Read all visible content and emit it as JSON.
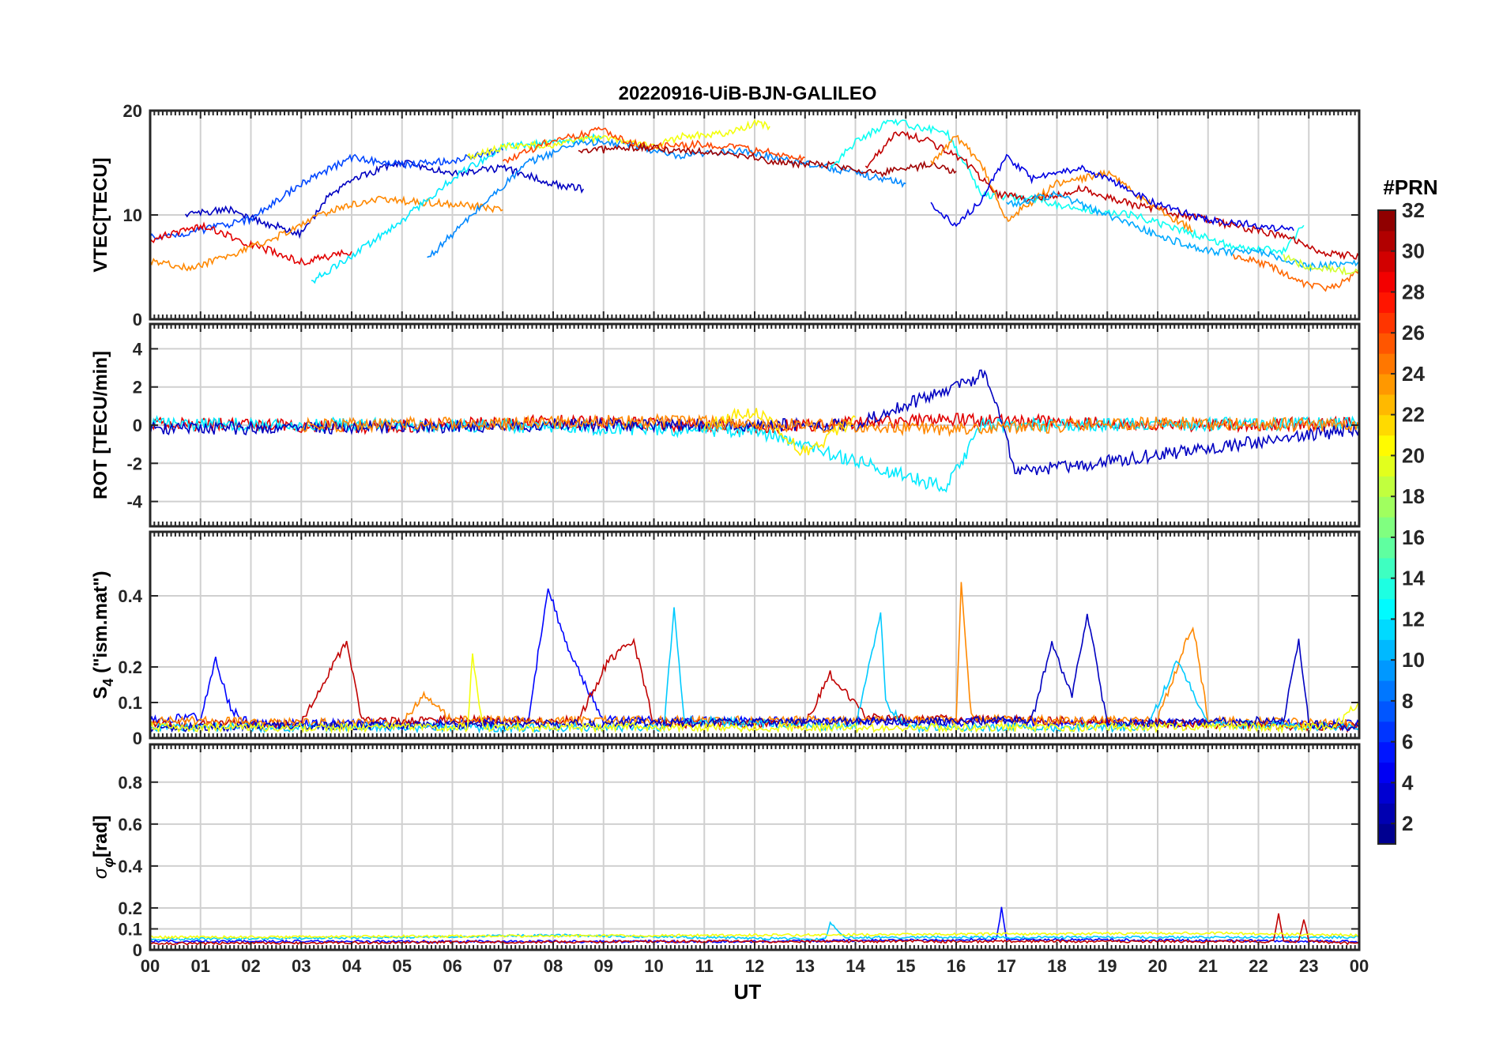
{
  "chart_data": {
    "type": "line",
    "title": "20220916-UiB-BJN-GALILEO",
    "xlabel": "UT",
    "xlim": [
      0,
      24
    ],
    "x_tick_labels": [
      "00",
      "01",
      "02",
      "03",
      "04",
      "05",
      "06",
      "07",
      "08",
      "09",
      "10",
      "11",
      "12",
      "13",
      "14",
      "15",
      "16",
      "17",
      "18",
      "19",
      "20",
      "21",
      "22",
      "23",
      "00"
    ],
    "grid": true,
    "color_by": "satellite PRN",
    "colorbar": {
      "title": "#PRN",
      "range": [
        1,
        32
      ],
      "ticks": [
        "2",
        "4",
        "6",
        "8",
        "10",
        "12",
        "14",
        "16",
        "18",
        "20",
        "22",
        "24",
        "26",
        "28",
        "30",
        "32"
      ],
      "colormap": "jet",
      "placement": "right"
    },
    "panels": [
      {
        "id": "vtec",
        "ylabel": "VTEC[TECU]",
        "ylim": [
          0,
          20
        ],
        "yticks": [
          0,
          10,
          20
        ],
        "ytick_labels": [
          "0",
          "10",
          "20"
        ],
        "series": [
          {
            "prn": 3,
            "x": [
              0.7,
              1.5,
              2.3,
              3.0,
              3.5,
              4.0,
              5.0,
              6.0,
              7.0,
              8.0,
              8.6
            ],
            "y": [
              10.0,
              10.6,
              9.2,
              8.2,
              11.5,
              13.5,
              15.0,
              14.0,
              14.5,
              13.0,
              12.5
            ]
          },
          {
            "prn": 7,
            "x": [
              0.0,
              1.0,
              2.0,
              3.0,
              4.0,
              5.0,
              6.0,
              7.0
            ],
            "y": [
              7.8,
              8.5,
              9.6,
              13.0,
              15.5,
              14.8,
              15.2,
              16.2
            ]
          },
          {
            "prn": 29,
            "x": [
              0.0,
              1.0,
              2.0,
              3.0,
              4.0
            ],
            "y": [
              7.6,
              9.0,
              7.2,
              5.5,
              6.5
            ]
          },
          {
            "prn": 24,
            "x": [
              0.0,
              0.8,
              1.8,
              2.8,
              3.6,
              4.5,
              5.5,
              6.5,
              7.0
            ],
            "y": [
              5.5,
              4.9,
              6.5,
              8.5,
              10.5,
              11.5,
              11.2,
              10.8,
              10.5
            ]
          },
          {
            "prn": 12,
            "x": [
              3.2,
              4.0,
              5.0,
              6.0,
              7.0,
              8.0,
              9.0
            ],
            "y": [
              3.6,
              6.0,
              9.5,
              13.5,
              16.5,
              17.0,
              17.5
            ]
          },
          {
            "prn": 9,
            "x": [
              5.5,
              6.5,
              7.5,
              8.5,
              9.5,
              10.5,
              11.5,
              12.5,
              13.5,
              14.5,
              15.0
            ],
            "y": [
              5.8,
              10.5,
              15.0,
              17.0,
              16.8,
              15.5,
              16.2,
              15.5,
              14.5,
              13.5,
              13.0
            ]
          },
          {
            "prn": 20,
            "x": [
              6.3,
              7.0,
              8.0,
              9.0,
              10.0,
              10.5,
              11.5,
              12.0,
              12.3
            ],
            "y": [
              15.5,
              16.5,
              16.8,
              17.5,
              16.5,
              17.5,
              17.8,
              18.8,
              18.5
            ]
          },
          {
            "prn": 26,
            "x": [
              7.0,
              8.0,
              9.0,
              9.5,
              10.0,
              11.0,
              12.0,
              13.0
            ],
            "y": [
              15.0,
              17.2,
              18.2,
              17.0,
              16.5,
              16.8,
              16.2,
              15.5
            ]
          },
          {
            "prn": 31,
            "x": [
              8.5,
              9.5,
              10.5,
              11.5,
              12.5,
              13.5,
              14.5,
              15.5,
              16.0
            ],
            "y": [
              16.0,
              16.5,
              16.2,
              16.0,
              15.0,
              14.8,
              14.0,
              14.8,
              14.2
            ]
          },
          {
            "prn": 13,
            "x": [
              13.5,
              14.0,
              14.7,
              15.2,
              15.8,
              16.5,
              17.5,
              18.5,
              19.5,
              20.5,
              21.5,
              22.5,
              22.9
            ],
            "y": [
              14.5,
              17.0,
              19.0,
              18.5,
              18.0,
              12.0,
              11.5,
              10.5,
              10.0,
              8.5,
              7.0,
              6.5,
              9.0
            ]
          },
          {
            "prn": 30,
            "x": [
              14.2,
              14.8,
              15.5,
              16.2,
              16.8,
              17.5,
              18.5,
              19.5,
              20.5,
              21.5,
              22.5,
              23.2,
              24.0
            ],
            "y": [
              14.5,
              18.0,
              17.0,
              15.0,
              12.0,
              11.5,
              12.5,
              11.0,
              10.0,
              9.0,
              8.0,
              6.5,
              6.0
            ]
          },
          {
            "prn": 24,
            "x": [
              15.5,
              16.0,
              16.5,
              17.0,
              18.0,
              19.0,
              20.0,
              20.7
            ],
            "y": [
              15.0,
              17.5,
              15.0,
              9.5,
              13.0,
              14.0,
              10.5,
              8.5
            ]
          },
          {
            "prn": 4,
            "x": [
              15.5,
              16.0,
              16.5,
              17.0,
              17.5,
              18.5,
              19.2,
              20.0,
              21.0,
              22.0,
              22.7
            ],
            "y": [
              11.0,
              9.0,
              11.5,
              15.5,
              13.5,
              14.5,
              13.0,
              11.0,
              9.5,
              9.0,
              8.5
            ]
          },
          {
            "prn": 10,
            "x": [
              17.0,
              18.0,
              19.0,
              20.0,
              21.0,
              22.0,
              23.0,
              24.0
            ],
            "y": [
              11.0,
              12.0,
              10.0,
              8.0,
              6.5,
              6.5,
              5.0,
              5.5
            ]
          },
          {
            "prn": 25,
            "x": [
              21.5,
              22.0,
              22.5,
              23.0,
              23.5,
              24.0
            ],
            "y": [
              6.0,
              5.5,
              4.5,
              3.2,
              3.0,
              4.5
            ]
          },
          {
            "prn": 19,
            "x": [
              22.5,
              23.0,
              23.5,
              24.0
            ],
            "y": [
              6.0,
              5.0,
              4.8,
              4.5
            ]
          }
        ]
      },
      {
        "id": "rot",
        "ylabel": "ROT [TECU/min]",
        "ylim": [
          -5.3,
          5.3
        ],
        "yticks": [
          -4,
          -2,
          0,
          2,
          4
        ],
        "ytick_labels": [
          "-4",
          "-2",
          "0",
          "2",
          "4"
        ],
        "series": [
          {
            "prn": 29,
            "x": [
              0.0,
              4.0,
              8.0,
              12.0,
              16.0,
              20.0,
              24.0
            ],
            "y": [
              0.1,
              -0.1,
              0.2,
              -0.1,
              0.3,
              0.0,
              0.1
            ]
          },
          {
            "prn": 12,
            "x": [
              0.0,
              6.0,
              12.0,
              15.8,
              16.5,
              24.0
            ],
            "y": [
              0.1,
              0.0,
              -0.3,
              -3.3,
              0.0,
              0.1
            ]
          },
          {
            "prn": 3,
            "x": [
              0.0,
              8.0,
              14.0,
              16.6,
              17.2,
              24.0
            ],
            "y": [
              -0.2,
              0.0,
              0.0,
              2.7,
              -2.5,
              -0.2
            ]
          },
          {
            "prn": 21,
            "x": [
              11.0,
              12.0,
              13.0,
              14.0
            ],
            "y": [
              0.0,
              0.8,
              -1.5,
              0.4
            ]
          },
          {
            "prn": 24,
            "x": [
              3.0,
              10.0,
              16.0,
              20.0,
              24.0
            ],
            "y": [
              0.0,
              0.2,
              -0.2,
              0.1,
              0.0
            ]
          }
        ]
      },
      {
        "id": "s4",
        "ylabel": "S4 (\"ism.mat\")",
        "ylabel_main": "S",
        "ylabel_sub": "4",
        "ylabel_rest": " (\"ism.mat\")",
        "ylim": [
          0,
          0.58
        ],
        "yticks": [
          0,
          0.1,
          0.2,
          0.4
        ],
        "ytick_labels": [
          "0",
          "0.1",
          "0.2",
          "0.4"
        ],
        "series": [
          {
            "prn": 5,
            "x": [
              0.0,
              1.0,
              1.3,
              1.6,
              2.0,
              6.0,
              7.5,
              7.9,
              8.3,
              9.0,
              24.0
            ],
            "y": [
              0.05,
              0.06,
              0.22,
              0.08,
              0.04,
              0.04,
              0.05,
              0.42,
              0.25,
              0.05,
              0.04
            ]
          },
          {
            "prn": 30,
            "x": [
              0.0,
              3.0,
              3.6,
              3.9,
              4.2,
              8.5,
              9.1,
              9.6,
              10.0,
              13.0,
              13.5,
              14.2,
              24.0
            ],
            "y": [
              0.04,
              0.04,
              0.2,
              0.27,
              0.05,
              0.05,
              0.22,
              0.27,
              0.04,
              0.04,
              0.18,
              0.06,
              0.03
            ]
          },
          {
            "prn": 24,
            "x": [
              0.0,
              5.0,
              5.4,
              6.0,
              7.0,
              16.0,
              16.1,
              16.3,
              17.0,
              20.0,
              20.7,
              21.0,
              24.0
            ],
            "y": [
              0.05,
              0.04,
              0.12,
              0.05,
              0.05,
              0.05,
              0.44,
              0.06,
              0.05,
              0.05,
              0.32,
              0.05,
              0.04
            ]
          },
          {
            "prn": 11,
            "x": [
              0.0,
              10.2,
              10.4,
              10.6,
              14.0,
              14.5,
              14.6,
              15.0,
              19.8,
              20.4,
              21.0,
              24.0
            ],
            "y": [
              0.03,
              0.03,
              0.37,
              0.05,
              0.03,
              0.35,
              0.1,
              0.03,
              0.03,
              0.22,
              0.04,
              0.03
            ]
          },
          {
            "prn": 3,
            "x": [
              0.0,
              17.5,
              17.9,
              18.3,
              18.6,
              19.0,
              22.5,
              22.8,
              23.0,
              24.0
            ],
            "y": [
              0.03,
              0.05,
              0.27,
              0.12,
              0.35,
              0.04,
              0.05,
              0.28,
              0.04,
              0.03
            ]
          },
          {
            "prn": 20,
            "x": [
              0.0,
              6.3,
              6.4,
              6.6,
              23.5,
              24.0
            ],
            "y": [
              0.03,
              0.03,
              0.24,
              0.03,
              0.03,
              0.1
            ]
          }
        ]
      },
      {
        "id": "sigma_phi",
        "ylabel": "σφ[rad]",
        "ylabel_main": "σ",
        "ylabel_sub": "φ",
        "ylabel_rest": "[rad]",
        "ylim": [
          0,
          0.98
        ],
        "yticks": [
          0,
          0.1,
          0.2,
          0.4,
          0.6,
          0.8
        ],
        "ytick_labels": [
          "0",
          "0.1",
          "0.2",
          "0.4",
          "0.6",
          "0.8"
        ],
        "series": [
          {
            "prn": 5,
            "x": [
              0.0,
              6.0,
              12.0,
              16.8,
              16.9,
              17.0,
              24.0
            ],
            "y": [
              0.04,
              0.04,
              0.04,
              0.05,
              0.2,
              0.05,
              0.04
            ]
          },
          {
            "prn": 11,
            "x": [
              0.0,
              5.0,
              8.0,
              13.4,
              13.5,
              13.8,
              24.0
            ],
            "y": [
              0.05,
              0.06,
              0.07,
              0.05,
              0.13,
              0.06,
              0.06
            ]
          },
          {
            "prn": 30,
            "x": [
              0.0,
              10.0,
              22.3,
              22.4,
              22.5,
              22.8,
              22.9,
              23.0,
              24.0
            ],
            "y": [
              0.03,
              0.04,
              0.04,
              0.17,
              0.04,
              0.04,
              0.15,
              0.04,
              0.03
            ]
          },
          {
            "prn": 20,
            "x": [
              0.0,
              12.0,
              21.0,
              24.0
            ],
            "y": [
              0.06,
              0.07,
              0.08,
              0.07
            ]
          }
        ]
      }
    ]
  }
}
